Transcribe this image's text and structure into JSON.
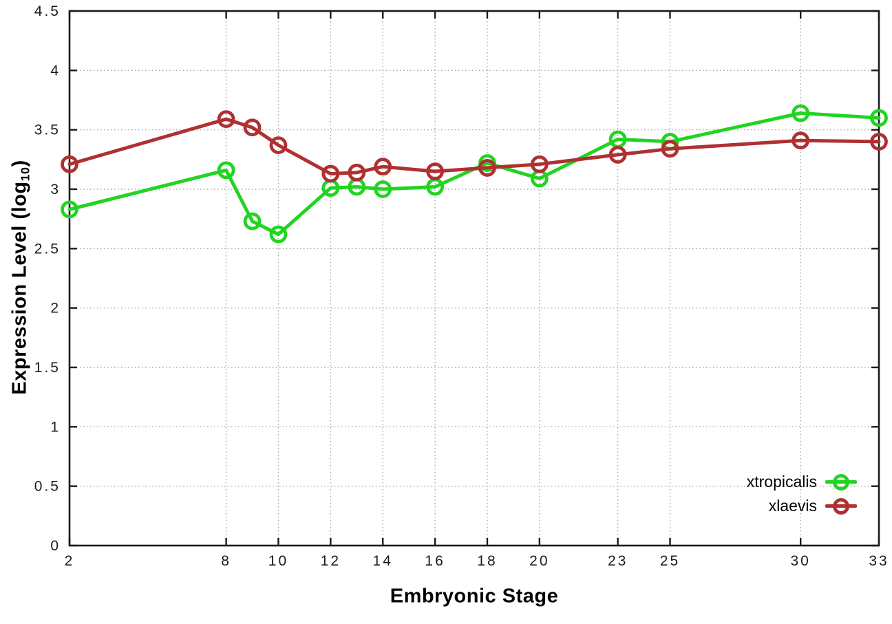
{
  "chart_data": {
    "type": "line",
    "title": "",
    "xlabel": "Embryonic Stage",
    "ylabel": "Expression Level (log10)",
    "ylabel_parts": {
      "base": "Expression Level (log",
      "sub": "10",
      "close": ")"
    },
    "xlim": [
      2,
      33
    ],
    "ylim": [
      0,
      4.5
    ],
    "x_tick_values": [
      2,
      8,
      10,
      12,
      14,
      16,
      18,
      20,
      23,
      25,
      30,
      33
    ],
    "x_tick_labels": [
      "2",
      "8",
      "10",
      "12",
      "14",
      "16",
      "18",
      "20",
      "23",
      "25",
      "30",
      "33"
    ],
    "y_tick_values": [
      0,
      0.5,
      1,
      1.5,
      2,
      2.5,
      3,
      3.5,
      4,
      4.5
    ],
    "y_tick_labels": [
      "0",
      "0.5",
      "1",
      "1.5",
      "2",
      "2.5",
      "3",
      "3.5",
      "4",
      "4.5"
    ],
    "grid": "dotted",
    "legend_position": "inside-bottom-right",
    "x": [
      2,
      8,
      9,
      10,
      12,
      13,
      14,
      16,
      18,
      20,
      23,
      25,
      30,
      33
    ],
    "series": [
      {
        "name": "xtropicalis",
        "color": "#22d422",
        "marker": "open-circle",
        "values": [
          2.83,
          3.16,
          2.73,
          2.62,
          3.01,
          3.02,
          3.0,
          3.02,
          3.22,
          3.09,
          3.42,
          3.4,
          3.64,
          3.6
        ]
      },
      {
        "name": "xlaevis",
        "color": "#b03032",
        "marker": "open-circle",
        "values": [
          3.21,
          3.59,
          3.52,
          3.37,
          3.13,
          3.14,
          3.19,
          3.15,
          3.18,
          3.21,
          3.29,
          3.34,
          3.41,
          3.4
        ]
      }
    ],
    "styles": {
      "axis_color": "#1a1a1a",
      "tick_label_color": "#1a1a1a",
      "grid_color": "#a8a8a8",
      "background": "#ffffff"
    }
  }
}
